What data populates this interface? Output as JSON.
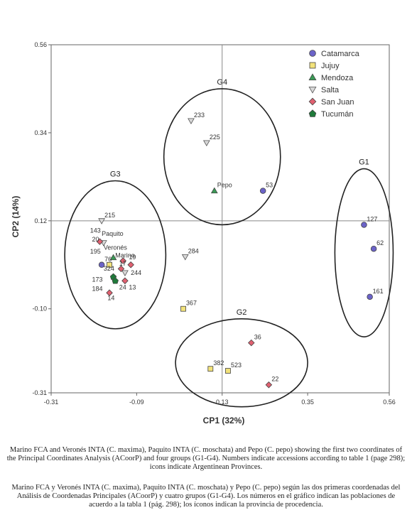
{
  "chart_data": {
    "type": "scatter",
    "xlabel": "CP1 (32%)",
    "ylabel": "CP2 (14%)",
    "xlim": [
      -0.31,
      0.56
    ],
    "ylim": [
      -0.31,
      0.56
    ],
    "xticks": [
      -0.31,
      -0.09,
      0.13,
      0.35,
      0.56
    ],
    "yticks": [
      -0.31,
      -0.1,
      0.12,
      0.34,
      0.56
    ],
    "xtick_labels": [
      "-0.31",
      "-0.09",
      "0.13",
      "0.35",
      "0.56"
    ],
    "ytick_labels": [
      "-0.31",
      "-0.10",
      "0.12",
      "0.34",
      "0.56"
    ],
    "reference_lines": {
      "x": 0.13,
      "y": 0.12
    },
    "legend_position": "top-right",
    "series": [
      {
        "name": "Catamarca",
        "marker": "circle",
        "color": "#6b63c8",
        "points": [
          {
            "x": 0.235,
            "y": 0.195,
            "label": "53"
          },
          {
            "x": 0.495,
            "y": 0.11,
            "label": "127"
          },
          {
            "x": 0.52,
            "y": 0.05,
            "label": "62"
          },
          {
            "x": 0.51,
            "y": -0.07,
            "label": "161"
          },
          {
            "x": -0.18,
            "y": 0.01,
            "label": "76"
          }
        ]
      },
      {
        "name": "Jujuy",
        "marker": "square",
        "color": "#f2e27a",
        "points": [
          {
            "x": 0.03,
            "y": -0.1,
            "label": "367"
          },
          {
            "x": 0.1,
            "y": -0.25,
            "label": "382"
          },
          {
            "x": 0.145,
            "y": -0.255,
            "label": "523"
          },
          {
            "x": -0.16,
            "y": 0.01,
            "label": ""
          }
        ]
      },
      {
        "name": "Mendoza",
        "marker": "triangle-up",
        "color": "#3a9b56",
        "points": [
          {
            "x": 0.11,
            "y": 0.195,
            "label": "Pepo"
          },
          {
            "x": -0.15,
            "y": 0.028,
            "label": ""
          }
        ]
      },
      {
        "name": "Salta",
        "marker": "triangle-down",
        "color": "#d8d8d8",
        "points": [
          {
            "x": 0.05,
            "y": 0.37,
            "label": "233"
          },
          {
            "x": 0.09,
            "y": 0.315,
            "label": "225"
          },
          {
            "x": -0.18,
            "y": 0.12,
            "label": "215"
          },
          {
            "x": 0.035,
            "y": 0.03,
            "label": "284"
          },
          {
            "x": -0.175,
            "y": 0.065,
            "label": ""
          },
          {
            "x": -0.12,
            "y": -0.01,
            "label": ""
          }
        ]
      },
      {
        "name": "San Juan",
        "marker": "diamond",
        "color": "#e06070",
        "points": [
          {
            "x": 0.205,
            "y": -0.185,
            "label": "36"
          },
          {
            "x": 0.25,
            "y": -0.29,
            "label": "22"
          },
          {
            "x": -0.185,
            "y": 0.068,
            "label": ""
          },
          {
            "x": -0.125,
            "y": 0.02,
            "label": ""
          },
          {
            "x": -0.105,
            "y": 0.01,
            "label": ""
          },
          {
            "x": -0.13,
            "y": 0.0,
            "label": ""
          },
          {
            "x": -0.12,
            "y": -0.03,
            "label": ""
          },
          {
            "x": -0.16,
            "y": -0.06,
            "label": ""
          }
        ]
      },
      {
        "name": "Tucumán",
        "marker": "pentagon",
        "color": "#1f7a3a",
        "points": [
          {
            "x": -0.15,
            "y": -0.02,
            "label": ""
          },
          {
            "x": -0.145,
            "y": -0.03,
            "label": ""
          }
        ]
      }
    ],
    "extra_labels": [
      {
        "x": -0.21,
        "y": 0.09,
        "text": "143"
      },
      {
        "x": -0.205,
        "y": 0.068,
        "text": "20"
      },
      {
        "x": -0.18,
        "y": 0.082,
        "text": "Paquito"
      },
      {
        "x": -0.175,
        "y": 0.048,
        "text": "Veronés"
      },
      {
        "x": -0.145,
        "y": 0.028,
        "text": "Marino"
      },
      {
        "x": -0.21,
        "y": 0.038,
        "text": "195"
      },
      {
        "x": -0.11,
        "y": 0.024,
        "text": "19"
      },
      {
        "x": -0.135,
        "y": 0.008,
        "text": "17"
      },
      {
        "x": -0.175,
        "y": -0.005,
        "text": "324"
      },
      {
        "x": -0.105,
        "y": -0.015,
        "text": "244"
      },
      {
        "x": -0.205,
        "y": -0.032,
        "text": "173"
      },
      {
        "x": -0.205,
        "y": -0.055,
        "text": "184"
      },
      {
        "x": -0.135,
        "y": -0.052,
        "text": "24"
      },
      {
        "x": -0.11,
        "y": -0.052,
        "text": "13"
      },
      {
        "x": -0.165,
        "y": -0.078,
        "text": "14"
      }
    ],
    "groups": [
      {
        "name": "G1",
        "cx": 0.495,
        "cy": 0.04,
        "rx": 0.075,
        "ry": 0.21
      },
      {
        "name": "G2",
        "cx": 0.18,
        "cy": -0.235,
        "rx": 0.17,
        "ry": 0.11
      },
      {
        "name": "G3",
        "cx": -0.145,
        "cy": 0.035,
        "rx": 0.13,
        "ry": 0.185
      },
      {
        "name": "G4",
        "cx": 0.13,
        "cy": 0.28,
        "rx": 0.15,
        "ry": 0.17
      }
    ]
  },
  "caption": {
    "english": "Marino FCA and Veronés INTA (C. maxima), Paquito INTA (C. moschata) and Pepo (C. pepo) showing the first two coordinates of the Principal Coordinates Analysis (ACoorP) and four groups (G1-G4). Numbers indicate accessions according to table 1 (page 298); icons indicate Argentinean Provinces.",
    "spanish": "Marino FCA y Veronés INTA (C. maxima), Paquito INTA (C. moschata) y Pepo (C. pepo) según las dos primeras coordenadas del Análisis de Coordenadas Principales (ACoorP) y cuatro grupos (G1-G4). Los números en el gráfico indican las poblaciones de acuerdo a la tabla 1 (pág. 298); los íconos indican la provincia de procedencia."
  }
}
